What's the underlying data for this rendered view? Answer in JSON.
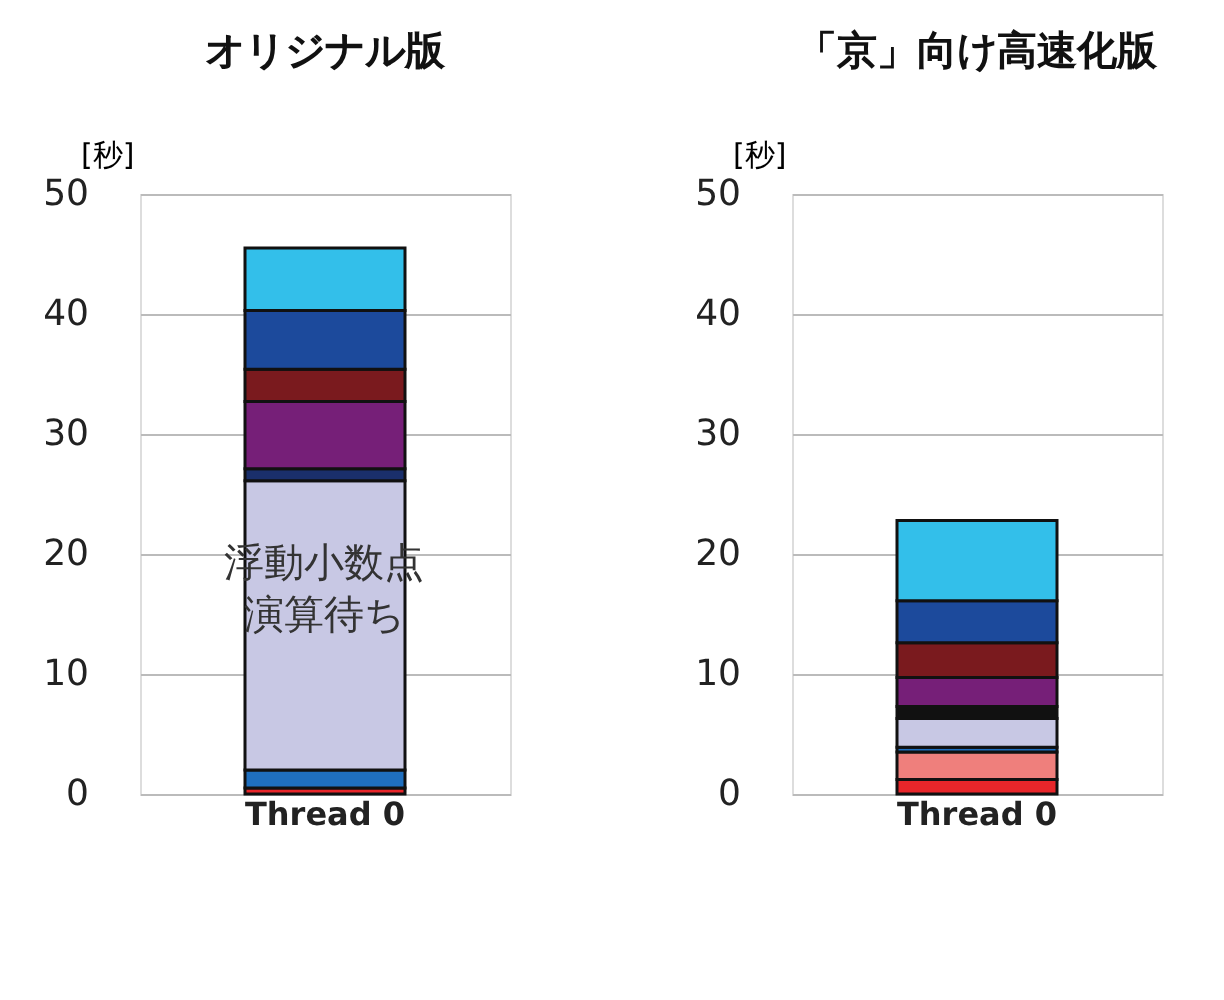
{
  "chart_data": [
    {
      "type": "bar",
      "title": "オリジナル版",
      "ylabel": "[秒]",
      "categories": [
        "Thread 0"
      ],
      "stacked": true,
      "ylim": [
        0,
        50
      ],
      "yticks": [
        0,
        10,
        20,
        30,
        40,
        50
      ],
      "grid": "y",
      "annotations": [
        "浮動小数点演算待ち"
      ],
      "series": [
        {
          "color": "#e8262a",
          "values": [
            0.5
          ]
        },
        {
          "color": "#ef7f7c",
          "values": [
            null
          ]
        },
        {
          "color": "#1f6fbf",
          "values": [
            1.5
          ]
        },
        {
          "color": "#c8c8e4",
          "values": [
            24.1
          ]
        },
        {
          "color": "#1a2f6b",
          "values": [
            1.0
          ]
        },
        {
          "color": "#111111",
          "values": [
            null
          ]
        },
        {
          "color": "#761f78",
          "values": [
            5.6
          ]
        },
        {
          "color": "#7a1a1e",
          "values": [
            2.7
          ]
        },
        {
          "color": "#1c4a9c",
          "values": [
            4.9
          ]
        },
        {
          "color": "#33bfea",
          "values": [
            5.2
          ]
        }
      ]
    },
    {
      "type": "bar",
      "title": "「京」向け高速化版",
      "ylabel": "[秒]",
      "categories": [
        "Thread 0"
      ],
      "stacked": true,
      "ylim": [
        0,
        50
      ],
      "yticks": [
        0,
        10,
        20,
        30,
        40,
        50
      ],
      "grid": "y",
      "series": [
        {
          "color": "#e8262a",
          "values": [
            1.2
          ]
        },
        {
          "color": "#ef7f7c",
          "values": [
            2.3
          ]
        },
        {
          "color": "#1f6fbf",
          "values": [
            0.4
          ]
        },
        {
          "color": "#c8c8e4",
          "values": [
            2.4
          ]
        },
        {
          "color": "#1a2f6b",
          "values": [
            null
          ]
        },
        {
          "color": "#111111",
          "values": [
            1.0
          ]
        },
        {
          "color": "#761f78",
          "values": [
            2.4
          ]
        },
        {
          "color": "#7a1a1e",
          "values": [
            2.9
          ]
        },
        {
          "color": "#1c4a9c",
          "values": [
            3.5
          ]
        },
        {
          "color": "#33bfea",
          "values": [
            6.7
          ]
        }
      ]
    }
  ]
}
